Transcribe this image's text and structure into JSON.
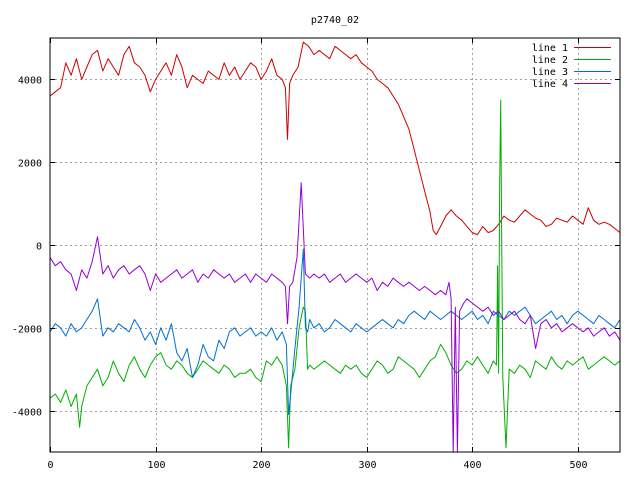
{
  "chart_data": {
    "type": "line",
    "title": "p2740_02",
    "xlabel": "",
    "ylabel": "",
    "xlim": [
      0,
      540
    ],
    "ylim": [
      -5000,
      5000
    ],
    "xticks": [
      0,
      100,
      200,
      300,
      400,
      500
    ],
    "yticks": [
      -4000,
      -2000,
      0,
      2000,
      4000
    ],
    "grid": true,
    "legend_position": "top-right",
    "series": [
      {
        "name": "line 1",
        "color": "#d00000",
        "x": [
          0,
          5,
          10,
          15,
          20,
          25,
          30,
          35,
          40,
          45,
          50,
          55,
          60,
          65,
          70,
          75,
          80,
          85,
          90,
          95,
          100,
          105,
          110,
          115,
          120,
          125,
          130,
          135,
          140,
          145,
          150,
          155,
          160,
          165,
          170,
          175,
          180,
          185,
          190,
          195,
          200,
          205,
          210,
          215,
          220,
          223,
          225,
          227,
          230,
          235,
          240,
          245,
          250,
          255,
          260,
          265,
          270,
          275,
          280,
          285,
          290,
          295,
          300,
          305,
          310,
          315,
          320,
          325,
          330,
          335,
          340,
          345,
          350,
          355,
          360,
          363,
          366,
          370,
          375,
          380,
          385,
          390,
          395,
          400,
          405,
          410,
          415,
          420,
          425,
          430,
          435,
          440,
          445,
          450,
          455,
          460,
          465,
          470,
          475,
          480,
          485,
          490,
          495,
          500,
          505,
          510,
          515,
          520,
          525,
          530,
          535,
          540
        ],
        "y": [
          3600,
          3700,
          3800,
          4400,
          4100,
          4500,
          4000,
          4300,
          4600,
          4700,
          4200,
          4500,
          4300,
          4100,
          4600,
          4800,
          4400,
          4300,
          4100,
          3700,
          4000,
          4200,
          4400,
          4100,
          4600,
          4300,
          3800,
          4100,
          4000,
          3900,
          4200,
          4100,
          4000,
          4400,
          4100,
          4300,
          4000,
          4200,
          4400,
          4300,
          4000,
          4200,
          4500,
          4100,
          4000,
          3800,
          2550,
          3900,
          4100,
          4300,
          4900,
          4800,
          4600,
          4700,
          4600,
          4500,
          4800,
          4700,
          4600,
          4500,
          4600,
          4400,
          4300,
          4200,
          4000,
          3900,
          3800,
          3600,
          3400,
          3100,
          2800,
          2300,
          1800,
          1300,
          800,
          350,
          250,
          450,
          700,
          850,
          700,
          600,
          450,
          300,
          250,
          450,
          300,
          350,
          500,
          700,
          600,
          550,
          700,
          850,
          750,
          650,
          600,
          450,
          500,
          650,
          600,
          550,
          700,
          600,
          500,
          900,
          600,
          500,
          550,
          500,
          400,
          300
        ]
      },
      {
        "name": "line 2",
        "color": "#00b000",
        "x": [
          0,
          5,
          10,
          15,
          20,
          25,
          28,
          30,
          35,
          40,
          45,
          50,
          55,
          60,
          65,
          70,
          75,
          80,
          85,
          90,
          95,
          100,
          105,
          110,
          115,
          120,
          125,
          130,
          135,
          140,
          145,
          150,
          155,
          160,
          165,
          170,
          175,
          180,
          185,
          190,
          195,
          200,
          205,
          210,
          215,
          220,
          224,
          226,
          228,
          232,
          236,
          240,
          242,
          244,
          246,
          250,
          255,
          260,
          265,
          270,
          275,
          280,
          285,
          290,
          295,
          300,
          305,
          310,
          315,
          320,
          325,
          330,
          335,
          340,
          345,
          350,
          355,
          360,
          365,
          370,
          375,
          380,
          385,
          390,
          395,
          400,
          405,
          410,
          415,
          420,
          423,
          424,
          425,
          426,
          427,
          428,
          429,
          432,
          435,
          440,
          445,
          450,
          455,
          460,
          465,
          470,
          475,
          480,
          485,
          490,
          495,
          500,
          505,
          510,
          515,
          520,
          525,
          530,
          535,
          540
        ],
        "y": [
          -3700,
          -3600,
          -3800,
          -3500,
          -3900,
          -3600,
          -4400,
          -3900,
          -3400,
          -3200,
          -3000,
          -3400,
          -3200,
          -2800,
          -3100,
          -3300,
          -2900,
          -2700,
          -3000,
          -3200,
          -2900,
          -2700,
          -2600,
          -2900,
          -3000,
          -2800,
          -2900,
          -3100,
          -3200,
          -3000,
          -2800,
          -2900,
          -3000,
          -3100,
          -2900,
          -3000,
          -3200,
          -3100,
          -3100,
          -3000,
          -3200,
          -3300,
          -2800,
          -2900,
          -2700,
          -2900,
          -3400,
          -4900,
          -3400,
          -3000,
          -2000,
          -1500,
          -1600,
          -3000,
          -2900,
          -3000,
          -2900,
          -2800,
          -2900,
          -3000,
          -3100,
          -2900,
          -3000,
          -2900,
          -3100,
          -3200,
          -3000,
          -2800,
          -2900,
          -3100,
          -3000,
          -2700,
          -2800,
          -2900,
          -3000,
          -3200,
          -3000,
          -2800,
          -2700,
          -2400,
          -2600,
          -2900,
          -3100,
          -3000,
          -2800,
          -2900,
          -2700,
          -2900,
          -3100,
          -2800,
          -2900,
          -500,
          -3100,
          1500,
          3500,
          -200,
          -3200,
          -4900,
          -3000,
          -3100,
          -2900,
          -3000,
          -3200,
          -2800,
          -2900,
          -3000,
          -2700,
          -2900,
          -3000,
          -2800,
          -2900,
          -2800,
          -2700,
          -3000,
          -2900,
          -2800,
          -2700,
          -2800,
          -2900,
          -2800
        ]
      },
      {
        "name": "line 3",
        "color": "#0070d0",
        "x": [
          0,
          5,
          10,
          15,
          20,
          25,
          30,
          35,
          40,
          45,
          50,
          55,
          60,
          65,
          70,
          75,
          80,
          85,
          90,
          95,
          100,
          105,
          110,
          115,
          120,
          125,
          130,
          135,
          140,
          145,
          150,
          155,
          160,
          165,
          170,
          175,
          180,
          185,
          190,
          195,
          200,
          205,
          210,
          215,
          220,
          224,
          226,
          228,
          232,
          236,
          240,
          242,
          244,
          246,
          250,
          255,
          260,
          265,
          270,
          275,
          280,
          285,
          290,
          295,
          300,
          305,
          310,
          315,
          320,
          325,
          330,
          335,
          340,
          345,
          350,
          355,
          360,
          365,
          370,
          375,
          380,
          385,
          390,
          395,
          400,
          405,
          410,
          415,
          420,
          425,
          430,
          435,
          440,
          445,
          450,
          455,
          460,
          465,
          470,
          475,
          480,
          485,
          490,
          495,
          500,
          505,
          510,
          515,
          520,
          525,
          530,
          535,
          540
        ],
        "y": [
          -2100,
          -1900,
          -2000,
          -2200,
          -1900,
          -2100,
          -2000,
          -1800,
          -1600,
          -1300,
          -2200,
          -2000,
          -2100,
          -1900,
          -2000,
          -2100,
          -1800,
          -2000,
          -2300,
          -2100,
          -2400,
          -2000,
          -2300,
          -1900,
          -2600,
          -2800,
          -2500,
          -3200,
          -2900,
          -2400,
          -2700,
          -2800,
          -2300,
          -2500,
          -2100,
          -2000,
          -2200,
          -2100,
          -2000,
          -2200,
          -2100,
          -2200,
          -2000,
          -2300,
          -2100,
          -2400,
          -4100,
          -3600,
          -2500,
          -1500,
          -100,
          -2000,
          -2100,
          -1800,
          -2000,
          -1900,
          -2100,
          -2000,
          -1800,
          -1900,
          -2000,
          -2100,
          -1900,
          -2000,
          -2100,
          -2000,
          -1900,
          -1800,
          -1900,
          -2000,
          -1800,
          -1900,
          -1700,
          -1600,
          -1700,
          -1800,
          -1600,
          -1700,
          -1800,
          -1700,
          -1600,
          -1700,
          -1800,
          -1700,
          -1600,
          -1800,
          -1700,
          -1900,
          -1600,
          -1700,
          -1800,
          -1600,
          -1700,
          -1600,
          -1500,
          -1700,
          -1900,
          -1800,
          -1700,
          -1600,
          -1800,
          -1700,
          -1900,
          -1700,
          -1600,
          -1700,
          -1800,
          -1900,
          -1700,
          -1800,
          -1900,
          -2000,
          -1800
        ]
      },
      {
        "name": "line 4",
        "color": "#9400d3",
        "x": [
          0,
          5,
          10,
          15,
          20,
          25,
          30,
          35,
          40,
          45,
          50,
          55,
          60,
          65,
          70,
          75,
          80,
          85,
          90,
          95,
          100,
          105,
          110,
          115,
          120,
          125,
          130,
          135,
          140,
          145,
          150,
          155,
          160,
          165,
          170,
          175,
          180,
          185,
          190,
          195,
          200,
          205,
          210,
          215,
          220,
          223,
          225,
          227,
          230,
          234,
          238,
          242,
          246,
          250,
          255,
          260,
          265,
          270,
          275,
          280,
          285,
          290,
          295,
          300,
          305,
          310,
          315,
          320,
          325,
          330,
          335,
          340,
          345,
          350,
          355,
          360,
          365,
          370,
          375,
          378,
          380,
          382,
          384,
          386,
          388,
          392,
          395,
          400,
          405,
          410,
          415,
          420,
          425,
          430,
          435,
          440,
          445,
          450,
          455,
          460,
          465,
          470,
          475,
          480,
          485,
          490,
          495,
          500,
          505,
          510,
          515,
          520,
          525,
          530,
          535,
          540
        ],
        "y": [
          -300,
          -500,
          -400,
          -600,
          -700,
          -1100,
          -600,
          -800,
          -400,
          200,
          -700,
          -500,
          -800,
          -600,
          -500,
          -700,
          -600,
          -500,
          -700,
          -1100,
          -700,
          -900,
          -800,
          -700,
          -600,
          -800,
          -700,
          -600,
          -900,
          -700,
          -800,
          -600,
          -700,
          -800,
          -700,
          -900,
          -800,
          -700,
          -900,
          -700,
          -800,
          -900,
          -700,
          -800,
          -900,
          -1000,
          -1900,
          -1000,
          -900,
          -300,
          1500,
          -700,
          -800,
          -700,
          -800,
          -700,
          -900,
          -800,
          -700,
          -900,
          -800,
          -700,
          -800,
          -900,
          -800,
          -1100,
          -900,
          -1000,
          -800,
          -900,
          -1000,
          -900,
          -1000,
          -1100,
          -1000,
          -1100,
          -1200,
          -1100,
          -1200,
          -900,
          -1300,
          -5000,
          -1500,
          -5000,
          -1600,
          -1400,
          -1300,
          -1400,
          -1500,
          -1600,
          -1500,
          -1700,
          -1600,
          -1800,
          -1700,
          -1600,
          -1800,
          -1900,
          -1700,
          -2500,
          -1900,
          -1800,
          -2000,
          -1900,
          -2100,
          -2000,
          -1900,
          -2000,
          -2100,
          -2000,
          -2200,
          -2100,
          -2000,
          -2200,
          -2100,
          -2300
        ]
      }
    ]
  }
}
